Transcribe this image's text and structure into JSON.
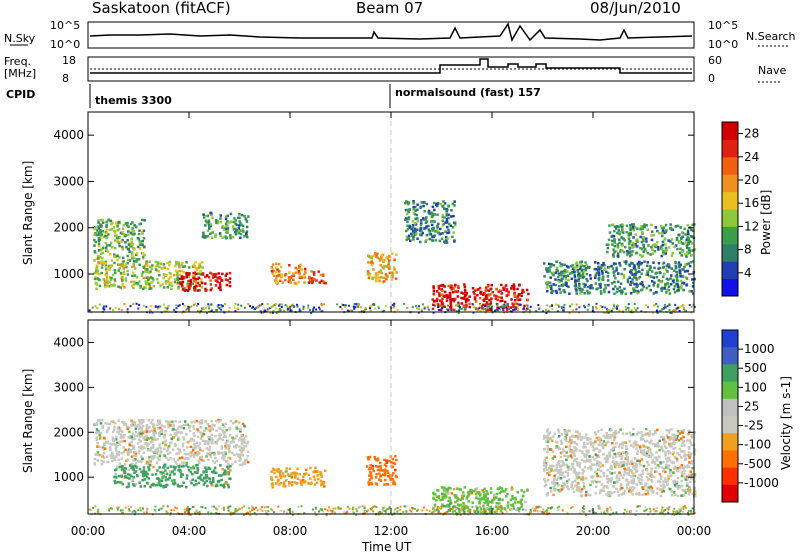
{
  "header": {
    "radar": "Saskatoon (fitACF)",
    "beam": "Beam 07",
    "date": "08/Jun/2010"
  },
  "meta_panels": {
    "nsky_label": "N.Sky",
    "nsky_ticks": [
      "10^5",
      "10^0"
    ],
    "nsearch_label": "N.Search",
    "nsearch_ticks": [
      "10^5",
      "10^0"
    ],
    "freq_label_1": "Freq.",
    "freq_label_2": "[MHz]",
    "freq_ticks": [
      "18",
      "8"
    ],
    "nave_label": "Nave",
    "nave_ticks": [
      "60",
      "0"
    ],
    "cpid_label": "CPID",
    "cpid_mode_1": "themis 3300",
    "cpid_mode_2": "normalsound (fast) 157"
  },
  "colors": {
    "power_scale": [
      "#1010e8",
      "#2040b0",
      "#2f7f68",
      "#3a9e4a",
      "#8cc83a",
      "#e8c020",
      "#f09020",
      "#f06010",
      "#e02010",
      "#d00000"
    ],
    "velocity_scale": [
      "#e00000",
      "#ff3000",
      "#ff7000",
      "#f0a020",
      "#c8c8c0",
      "#c0c0c0",
      "#60c040",
      "#40a060",
      "#4060c0",
      "#2040d0"
    ]
  },
  "chart_data": [
    {
      "type": "heatmap",
      "name_in_figure": "power panel",
      "ylabel": "Slant Range [km]",
      "ylim": [
        180,
        4500
      ],
      "y_ticks": [
        "4000",
        "3000",
        "2000",
        "1000"
      ],
      "x_ticks": [
        "00:00",
        "04:00",
        "08:00",
        "12:00",
        "16:00",
        "20:00",
        "00:00"
      ],
      "xlim_hours": [
        0,
        24
      ],
      "colorbar_label": "Power [dB]",
      "colorbar_ticks": [
        "28",
        "24",
        "20",
        "16",
        "12",
        "8",
        "4"
      ],
      "colorbar_range": [
        0,
        30
      ],
      "regions": [
        {
          "t": [
            0.2,
            2.2
          ],
          "r": [
            1300,
            2200
          ],
          "level": 12
        },
        {
          "t": [
            0.2,
            4.5
          ],
          "r": [
            700,
            1300
          ],
          "level": 14
        },
        {
          "t": [
            3.6,
            5.6
          ],
          "r": [
            650,
            1050
          ],
          "level": 28
        },
        {
          "t": [
            4.5,
            6.3
          ],
          "r": [
            1800,
            2350
          ],
          "level": 10
        },
        {
          "t": [
            7.2,
            8.6
          ],
          "r": [
            800,
            1250
          ],
          "level": 20
        },
        {
          "t": [
            8.7,
            9.4
          ],
          "r": [
            800,
            1100
          ],
          "level": 24
        },
        {
          "t": [
            11.0,
            12.2
          ],
          "r": [
            850,
            1500
          ],
          "level": 18
        },
        {
          "t": [
            12.5,
            14.5
          ],
          "r": [
            1700,
            2600
          ],
          "level": 8
        },
        {
          "t": [
            13.6,
            17.4
          ],
          "r": [
            250,
            800
          ],
          "level": 28
        },
        {
          "t": [
            18.0,
            24.0
          ],
          "r": [
            600,
            1300
          ],
          "level": 8
        },
        {
          "t": [
            20.5,
            24.0
          ],
          "r": [
            1400,
            2100
          ],
          "level": 10
        }
      ]
    },
    {
      "type": "heatmap",
      "name_in_figure": "velocity panel",
      "ylabel": "Slant Range [km]",
      "xlabel": "Time UT",
      "ylim": [
        180,
        4500
      ],
      "y_ticks": [
        "4000",
        "3000",
        "2000",
        "1000"
      ],
      "x_ticks": [
        "00:00",
        "04:00",
        "08:00",
        "12:00",
        "16:00",
        "20:00",
        "00:00"
      ],
      "xlim_hours": [
        0,
        24
      ],
      "colorbar_label": "Velocity [m s-1]",
      "colorbar_ticks": [
        "1000",
        "500",
        "100",
        "25",
        "-25",
        "-100",
        "-500",
        "-1000"
      ],
      "regions": [
        {
          "t": [
            0.2,
            6.3
          ],
          "r": [
            1300,
            2300
          ],
          "level": -25
        },
        {
          "t": [
            1.0,
            5.6
          ],
          "r": [
            800,
            1300
          ],
          "level": 100
        },
        {
          "t": [
            7.2,
            9.4
          ],
          "r": [
            800,
            1250
          ],
          "level": -100
        },
        {
          "t": [
            11.0,
            12.2
          ],
          "r": [
            850,
            1500
          ],
          "level": -500
        },
        {
          "t": [
            13.6,
            17.4
          ],
          "r": [
            250,
            800
          ],
          "level": 25
        },
        {
          "t": [
            18.0,
            24.0
          ],
          "r": [
            600,
            2100
          ],
          "level": -25
        }
      ]
    }
  ]
}
